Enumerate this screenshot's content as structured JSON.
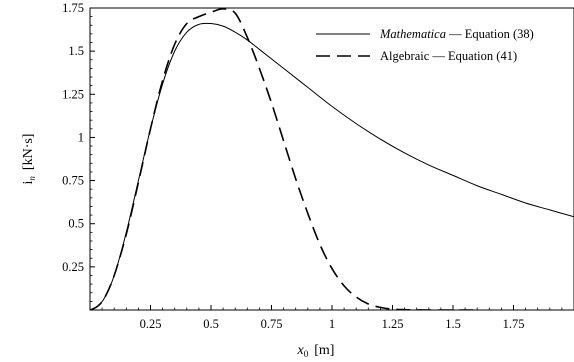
{
  "chart_data": {
    "type": "line",
    "title": "",
    "xlabel": {
      "symbol": "x",
      "subscript": "0",
      "unit": "[m]"
    },
    "ylabel": {
      "symbol": "i",
      "subscript": "n",
      "unit": "[kN·s]"
    },
    "xlim": [
      0,
      2.0
    ],
    "ylim": [
      0,
      1.75
    ],
    "x_ticks": [
      0.25,
      0.5,
      0.75,
      1,
      1.25,
      1.5,
      1.75
    ],
    "x_tick_labels": [
      "0.25",
      "0.5",
      "0.75",
      "1",
      "1.25",
      "1.5",
      "1.75"
    ],
    "y_ticks": [
      0.25,
      0.5,
      0.75,
      1,
      1.25,
      1.5,
      1.75
    ],
    "y_tick_labels": [
      "0.25",
      "0.5",
      "0.75",
      "1",
      "1.25",
      "1.5",
      "1.75"
    ],
    "grid": false,
    "legend_position": "top-right",
    "series": [
      {
        "name": "Mathematica — Equation (38)",
        "name_parts": {
          "italic": "Mathematica",
          "rest": " — Equation (38)"
        },
        "line_style": "solid",
        "color": "#000000",
        "x": [
          0,
          0.03,
          0.06,
          0.1,
          0.15,
          0.2,
          0.25,
          0.3,
          0.35,
          0.4,
          0.45,
          0.5,
          0.55,
          0.6,
          0.65,
          0.7,
          0.75,
          0.8,
          0.9,
          1.0,
          1.1,
          1.2,
          1.3,
          1.4,
          1.5,
          1.6,
          1.7,
          1.8,
          1.9,
          2.0
        ],
        "y": [
          0,
          0.02,
          0.07,
          0.2,
          0.45,
          0.75,
          1.05,
          1.31,
          1.5,
          1.61,
          1.655,
          1.66,
          1.645,
          1.61,
          1.565,
          1.51,
          1.455,
          1.4,
          1.29,
          1.18,
          1.08,
          0.99,
          0.91,
          0.84,
          0.78,
          0.72,
          0.67,
          0.62,
          0.58,
          0.54
        ]
      },
      {
        "name": "Algebraic — Equation (41)",
        "line_style": "dashed",
        "color": "#000000",
        "x": [
          0,
          0.03,
          0.06,
          0.1,
          0.15,
          0.2,
          0.25,
          0.3,
          0.35,
          0.4,
          0.45,
          0.5,
          0.55,
          0.6,
          0.65,
          0.7,
          0.75,
          0.8,
          0.85,
          0.9,
          0.95,
          1.0,
          1.05,
          1.1,
          1.15,
          1.2,
          1.25,
          1.3,
          1.4,
          1.5,
          1.6
        ],
        "y": [
          0,
          0.02,
          0.07,
          0.2,
          0.44,
          0.74,
          1.05,
          1.33,
          1.54,
          1.66,
          1.7,
          1.725,
          1.745,
          1.72,
          1.58,
          1.4,
          1.2,
          0.98,
          0.76,
          0.56,
          0.38,
          0.24,
          0.14,
          0.075,
          0.035,
          0.015,
          0.005,
          0.002,
          0.0,
          0.0,
          0.0
        ]
      }
    ]
  }
}
